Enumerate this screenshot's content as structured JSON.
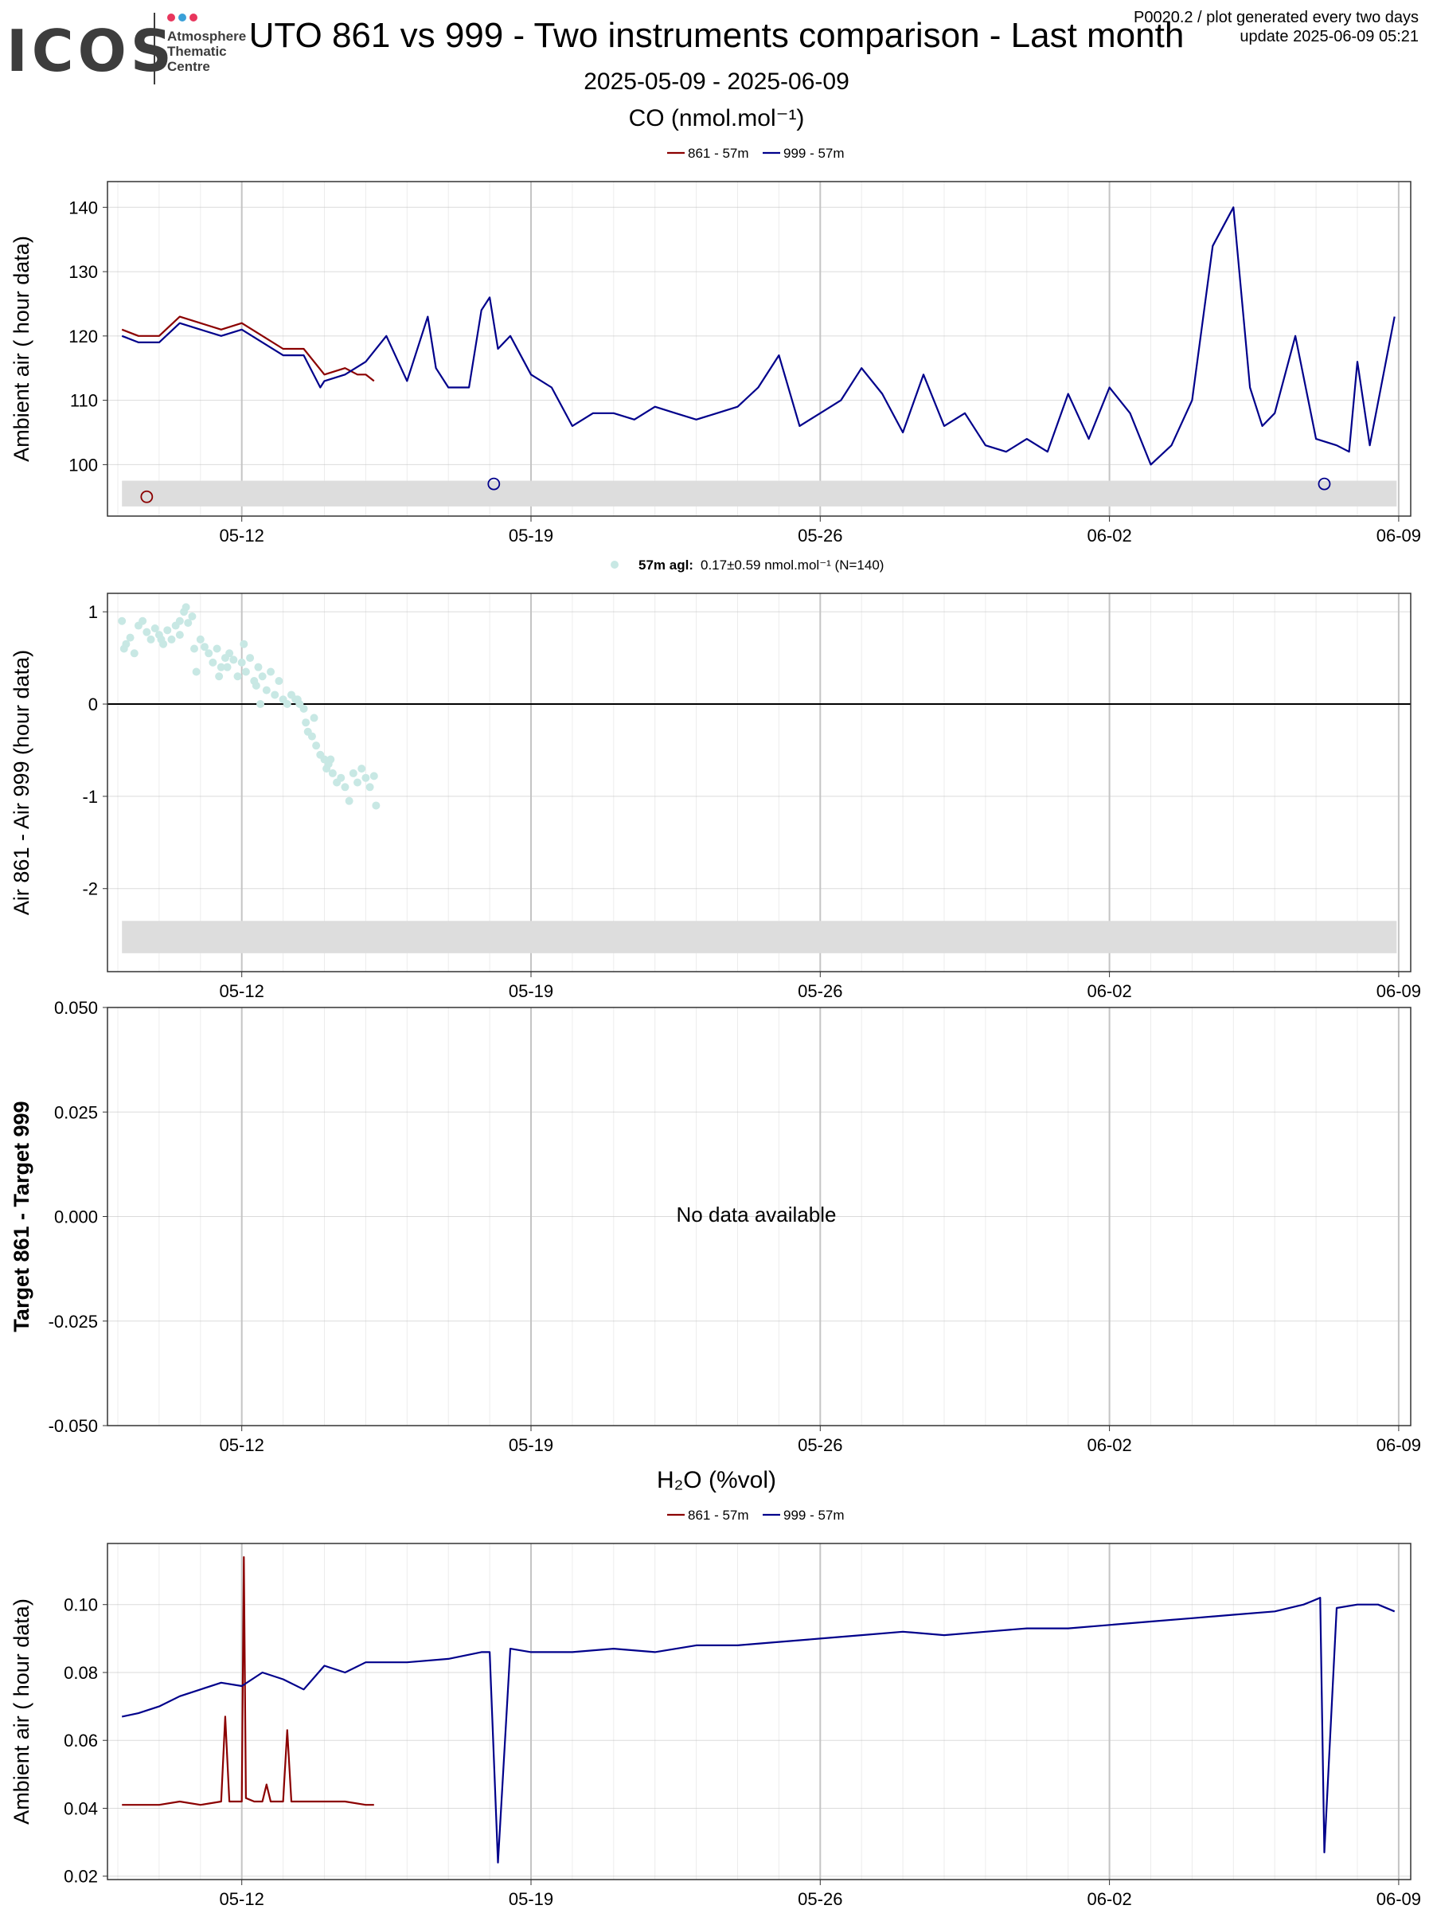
{
  "header": {
    "logo_text": "ICOS",
    "logo_subtitle": [
      "Atmosphere",
      "Thematic",
      "Centre"
    ],
    "logo_dot_colors": [
      "#e8365d",
      "#3aa0d8",
      "#e8365d"
    ],
    "title": "UTO 861 vs 999 - Two instruments comparison - Last month",
    "date_range": "2025-05-09 - 2025-06-09",
    "meta_line1": "P0020.2 / plot generated every two days",
    "meta_line2": "update  2025-06-09 05:21"
  },
  "colors": {
    "series_861": "#8b0000",
    "series_999": "#00008b",
    "diff_points": "#c8e8e4",
    "band": "#dddddd",
    "grid_major": "#c4c4c4",
    "grid_minor": "#ececec"
  },
  "chart_data": [
    {
      "id": "co",
      "type": "line",
      "title": "CO (nmol.mol⁻¹)",
      "ylabel": "Ambient air ( hour data)",
      "ylim": [
        92,
        144
      ],
      "yticks": [
        100,
        110,
        120,
        130,
        140
      ],
      "xticks": [
        "05-12",
        "05-19",
        "05-26",
        "06-02",
        "06-09"
      ],
      "legend": [
        "861 - 57m",
        "999 - 57m"
      ],
      "series": [
        {
          "name": "861 - 57m",
          "x_days": [
            0.1,
            0.5,
            1.0,
            1.5,
            2.0,
            2.5,
            3.0,
            3.5,
            4.0,
            4.5,
            5.0,
            5.5,
            5.8,
            6.0,
            6.2
          ],
          "values": [
            121,
            120,
            120,
            123,
            122,
            121,
            122,
            120,
            118,
            118,
            114,
            115,
            114,
            114,
            113
          ]
        },
        {
          "name": "999 - 57m",
          "x_days": [
            0.1,
            0.5,
            1.0,
            1.5,
            2.0,
            2.5,
            3.0,
            3.5,
            4.0,
            4.5,
            4.9,
            5.0,
            5.5,
            6.0,
            6.5,
            7.0,
            7.5,
            7.7,
            8.0,
            8.5,
            8.8,
            9.0,
            9.2,
            9.5,
            10.0,
            10.5,
            11.0,
            11.5,
            12.0,
            12.5,
            13.0,
            13.5,
            14.0,
            14.5,
            15.0,
            15.5,
            16.0,
            16.5,
            17.0,
            17.5,
            18.0,
            18.5,
            19.0,
            19.5,
            20.0,
            20.5,
            21.0,
            21.5,
            22.0,
            22.5,
            23.0,
            23.5,
            24.0,
            24.5,
            25.0,
            25.5,
            26.0,
            26.5,
            27.0,
            27.4,
            27.7,
            28.0,
            28.5,
            29.0,
            29.5,
            29.8,
            30.0,
            30.3,
            30.9
          ],
          "values": [
            120,
            119,
            119,
            122,
            121,
            120,
            121,
            119,
            117,
            117,
            112,
            113,
            114,
            116,
            120,
            113,
            123,
            115,
            112,
            112,
            124,
            126,
            118,
            120,
            114,
            112,
            106,
            108,
            108,
            107,
            109,
            108,
            107,
            108,
            109,
            112,
            117,
            106,
            108,
            110,
            115,
            111,
            105,
            114,
            106,
            108,
            103,
            102,
            104,
            102,
            111,
            104,
            112,
            108,
            100,
            103,
            110,
            134,
            140,
            112,
            106,
            108,
            120,
            104,
            103,
            102,
            116,
            103,
            123
          ]
        }
      ],
      "open_points": [
        {
          "series": "861 - 57m",
          "x_day": 0.7,
          "value": 95
        },
        {
          "series": "999 - 57m",
          "x_day": 9.1,
          "value": 97
        },
        {
          "series": "999 - 57m",
          "x_day": 29.2,
          "value": 97
        }
      ],
      "band": [
        93.5,
        97.5
      ]
    },
    {
      "id": "diff",
      "type": "scatter",
      "legend_label": "57m agl:",
      "legend_text": "0.17±0.59 nmol.mol⁻¹   (N=140)",
      "ylabel": "Air 861 - Air 999 (hour data)",
      "ylim": [
        -2.9,
        1.2
      ],
      "yticks": [
        1,
        0,
        -1,
        -2
      ],
      "xticks": [
        "05-12",
        "05-19",
        "05-26",
        "06-02",
        "06-09"
      ],
      "band": [
        -2.7,
        -2.35
      ],
      "points": [
        [
          0.1,
          0.9
        ],
        [
          0.2,
          0.65
        ],
        [
          0.3,
          0.72
        ],
        [
          0.4,
          0.55
        ],
        [
          0.5,
          0.85
        ],
        [
          0.6,
          0.9
        ],
        [
          0.7,
          0.78
        ],
        [
          0.8,
          0.7
        ],
        [
          0.9,
          0.82
        ],
        [
          1.0,
          0.75
        ],
        [
          1.1,
          0.65
        ],
        [
          1.2,
          0.8
        ],
        [
          1.3,
          0.7
        ],
        [
          1.4,
          0.85
        ],
        [
          1.5,
          0.9
        ],
        [
          1.6,
          1.0
        ],
        [
          1.65,
          1.05
        ],
        [
          1.7,
          0.88
        ],
        [
          1.8,
          0.95
        ],
        [
          1.85,
          0.6
        ],
        [
          1.9,
          0.35
        ],
        [
          2.0,
          0.7
        ],
        [
          2.1,
          0.62
        ],
        [
          2.2,
          0.55
        ],
        [
          2.3,
          0.45
        ],
        [
          2.4,
          0.6
        ],
        [
          2.5,
          0.4
        ],
        [
          2.6,
          0.5
        ],
        [
          2.7,
          0.55
        ],
        [
          2.8,
          0.48
        ],
        [
          2.9,
          0.3
        ],
        [
          3.0,
          0.45
        ],
        [
          3.05,
          0.65
        ],
        [
          3.1,
          0.35
        ],
        [
          3.2,
          0.5
        ],
        [
          3.3,
          0.25
        ],
        [
          3.4,
          0.4
        ],
        [
          3.5,
          0.3
        ],
        [
          3.6,
          0.15
        ],
        [
          3.7,
          0.35
        ],
        [
          3.8,
          0.1
        ],
        [
          3.9,
          0.25
        ],
        [
          4.0,
          0.05
        ],
        [
          4.1,
          0.0
        ],
        [
          4.2,
          0.1
        ],
        [
          4.3,
          0.05
        ],
        [
          4.4,
          0.0
        ],
        [
          4.5,
          -0.05
        ],
        [
          4.55,
          -0.2
        ],
        [
          4.6,
          -0.3
        ],
        [
          4.7,
          -0.35
        ],
        [
          4.75,
          -0.15
        ],
        [
          4.8,
          -0.45
        ],
        [
          4.9,
          -0.55
        ],
        [
          5.0,
          -0.6
        ],
        [
          5.05,
          -0.7
        ],
        [
          5.1,
          -0.65
        ],
        [
          5.2,
          -0.75
        ],
        [
          5.3,
          -0.85
        ],
        [
          5.4,
          -0.8
        ],
        [
          5.5,
          -0.9
        ],
        [
          5.6,
          -1.05
        ],
        [
          5.7,
          -0.75
        ],
        [
          5.8,
          -0.85
        ],
        [
          5.9,
          -0.7
        ],
        [
          6.0,
          -0.8
        ],
        [
          6.1,
          -0.9
        ],
        [
          6.2,
          -0.78
        ],
        [
          6.25,
          -1.1
        ],
        [
          1.5,
          0.75
        ],
        [
          2.45,
          0.3
        ],
        [
          3.35,
          0.2
        ],
        [
          0.15,
          0.6
        ],
        [
          1.05,
          0.7
        ],
        [
          2.65,
          0.4
        ],
        [
          3.45,
          0.0
        ],
        [
          4.35,
          0.05
        ],
        [
          5.15,
          -0.6
        ]
      ]
    },
    {
      "id": "target",
      "type": "line",
      "ylabel": "Target 861 - Target 999",
      "ylim": [
        -0.05,
        0.05
      ],
      "yticks": [
        "0.050",
        "0.025",
        "0.000",
        "-0.025",
        "-0.050"
      ],
      "xticks": [
        "05-12",
        "05-19",
        "05-26",
        "06-02",
        "06-09"
      ],
      "no_data_text": "No data available"
    },
    {
      "id": "h2o",
      "type": "line",
      "title": "H₂O (%vol)",
      "ylabel": "Ambient air ( hour data)",
      "ylim": [
        0.019,
        0.118
      ],
      "yticks": [
        "0.02",
        "0.04",
        "0.06",
        "0.08",
        "0.10"
      ],
      "xticks": [
        "05-12",
        "05-19",
        "05-26",
        "06-02",
        "06-09"
      ],
      "legend": [
        "861 - 57m",
        "999 - 57m"
      ],
      "series": [
        {
          "name": "861 - 57m",
          "x_days": [
            0.1,
            0.5,
            1.0,
            1.5,
            2.0,
            2.5,
            2.6,
            2.7,
            3.0,
            3.05,
            3.1,
            3.3,
            3.5,
            3.6,
            3.7,
            4.0,
            4.1,
            4.2,
            4.5,
            5.0,
            5.5,
            6.0,
            6.2
          ],
          "values": [
            0.041,
            0.041,
            0.041,
            0.042,
            0.041,
            0.042,
            0.067,
            0.042,
            0.042,
            0.114,
            0.043,
            0.042,
            0.042,
            0.047,
            0.042,
            0.042,
            0.063,
            0.042,
            0.042,
            0.042,
            0.042,
            0.041,
            0.041
          ]
        },
        {
          "name": "999 - 57m",
          "x_days": [
            0.1,
            0.5,
            1.0,
            1.5,
            2.0,
            2.5,
            3.0,
            3.5,
            4.0,
            4.5,
            5.0,
            5.5,
            6.0,
            7.0,
            8.0,
            8.8,
            9.0,
            9.2,
            9.5,
            10.0,
            11.0,
            12.0,
            13.0,
            14.0,
            15.0,
            16.0,
            17.0,
            18.0,
            19.0,
            20.0,
            21.0,
            22.0,
            23.0,
            24.0,
            25.0,
            26.0,
            27.0,
            28.0,
            28.7,
            28.9,
            29.1,
            29.2,
            29.5,
            30.0,
            30.5,
            30.9
          ],
          "values": [
            0.067,
            0.068,
            0.07,
            0.073,
            0.075,
            0.077,
            0.076,
            0.08,
            0.078,
            0.075,
            0.082,
            0.08,
            0.083,
            0.083,
            0.084,
            0.086,
            0.086,
            0.024,
            0.087,
            0.086,
            0.086,
            0.087,
            0.086,
            0.088,
            0.088,
            0.089,
            0.09,
            0.091,
            0.092,
            0.091,
            0.092,
            0.093,
            0.093,
            0.094,
            0.095,
            0.096,
            0.097,
            0.098,
            0.1,
            0.101,
            0.102,
            0.027,
            0.099,
            0.1,
            0.1,
            0.098
          ]
        }
      ]
    }
  ]
}
